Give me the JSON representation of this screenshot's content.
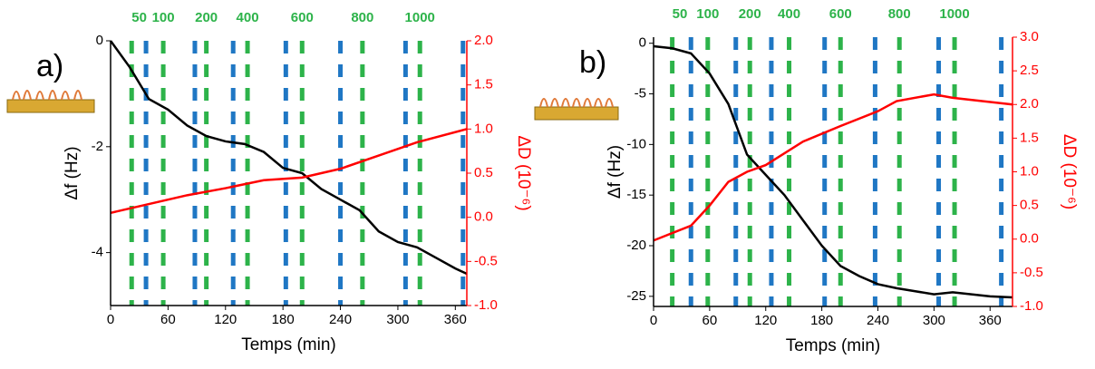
{
  "chart_data": [
    {
      "type": "line",
      "panel_label": "a)",
      "x_label": "Temps (min)",
      "y_label": "Δf (Hz)",
      "y2_label": "ΔD (10⁻⁶)",
      "xlim": [
        0,
        372
      ],
      "xticks": [
        0,
        60,
        120,
        180,
        240,
        300,
        360
      ],
      "ylim": [
        -5,
        0
      ],
      "yticks": [
        0,
        -2,
        -4
      ],
      "y2lim": [
        -1,
        2
      ],
      "y2ticks": [
        {
          "value": -1,
          "label": "-1.0"
        },
        {
          "value": -0.5,
          "label": "-0.5"
        },
        {
          "value": 0,
          "label": "0.0"
        },
        {
          "value": 0.5,
          "label": "0.5"
        },
        {
          "value": 1,
          "label": "1.0"
        },
        {
          "value": 1.5,
          "label": "1.5"
        },
        {
          "value": 2,
          "label": "2.0"
        }
      ],
      "series": [
        {
          "name": "Δf",
          "color": "#000000",
          "x": [
            0,
            20,
            40,
            60,
            80,
            100,
            120,
            140,
            160,
            180,
            200,
            220,
            240,
            260,
            280,
            300,
            320,
            340,
            360,
            372
          ],
          "values": [
            0,
            -0.5,
            -1.1,
            -1.3,
            -1.6,
            -1.8,
            -1.9,
            -1.95,
            -2.1,
            -2.4,
            -2.5,
            -2.8,
            -3,
            -3.2,
            -3.6,
            -3.8,
            -3.9,
            -4.1,
            -4.3,
            -4.4
          ]
        },
        {
          "name": "ΔD",
          "color": "#ff0000",
          "axis": "y2",
          "x": [
            0,
            40,
            80,
            120,
            160,
            200,
            240,
            280,
            320,
            372
          ],
          "values": [
            0.05,
            0.15,
            0.25,
            0.33,
            0.42,
            0.45,
            0.55,
            0.7,
            0.85,
            1.0
          ]
        }
      ],
      "green_lines": {
        "color": "#2db34a",
        "x": [
          22,
          55,
          100,
          143,
          200,
          263,
          323
        ],
        "labels": [
          "50",
          "100",
          "200",
          "400",
          "600",
          "800",
          "1000"
        ]
      },
      "blue_lines": {
        "color": "#1f77c4",
        "x": [
          37,
          88,
          128,
          183,
          240,
          308,
          368
        ]
      }
    },
    {
      "type": "line",
      "panel_label": "b)",
      "x_label": "Temps (min)",
      "y_label": "Δf (Hz)",
      "y2_label": "ΔD (10⁻⁶)",
      "xlim": [
        0,
        384
      ],
      "xticks": [
        0,
        60,
        120,
        180,
        240,
        300,
        360
      ],
      "ylim": [
        -26,
        0.6
      ],
      "yticks": [
        0,
        -5,
        -10,
        -15,
        -20,
        -25
      ],
      "y2lim": [
        -1,
        3
      ],
      "y2ticks": [
        {
          "value": -1,
          "label": "-1.0"
        },
        {
          "value": -0.5,
          "label": "-0.5"
        },
        {
          "value": 0,
          "label": "0.0"
        },
        {
          "value": 0.5,
          "label": "0.5"
        },
        {
          "value": 1,
          "label": "1.0"
        },
        {
          "value": 1.5,
          "label": "1.5"
        },
        {
          "value": 2,
          "label": "2.0"
        },
        {
          "value": 2.5,
          "label": "2.5"
        },
        {
          "value": 3,
          "label": "3.0"
        }
      ],
      "series": [
        {
          "name": "Δf",
          "color": "#000000",
          "x": [
            0,
            20,
            40,
            60,
            80,
            100,
            120,
            140,
            160,
            180,
            200,
            220,
            240,
            260,
            280,
            300,
            320,
            340,
            360,
            384
          ],
          "values": [
            -0.3,
            -0.5,
            -1,
            -3,
            -6,
            -11,
            -13,
            -15,
            -17.5,
            -20,
            -22,
            -23,
            -23.8,
            -24.2,
            -24.5,
            -24.8,
            -24.6,
            -24.8,
            -25,
            -25.1
          ]
        },
        {
          "name": "ΔD",
          "color": "#ff0000",
          "axis": "y2",
          "x": [
            0,
            40,
            60,
            80,
            100,
            120,
            160,
            200,
            240,
            260,
            300,
            320,
            384
          ],
          "values": [
            -0.02,
            0.2,
            0.5,
            0.85,
            1.0,
            1.1,
            1.45,
            1.68,
            1.9,
            2.05,
            2.15,
            2.1,
            2.0
          ]
        }
      ],
      "green_lines": {
        "color": "#2db34a",
        "x": [
          20,
          58,
          103,
          145,
          200,
          263,
          322
        ],
        "labels": [
          "50",
          "100",
          "200",
          "400",
          "600",
          "800",
          "1000"
        ]
      },
      "blue_lines": {
        "color": "#1f77c4",
        "x": [
          40,
          88,
          126,
          183,
          237,
          305,
          372
        ]
      }
    }
  ]
}
